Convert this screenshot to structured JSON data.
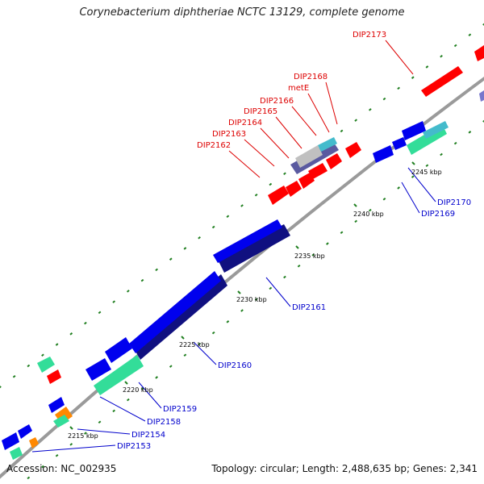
{
  "title": "Corynebacterium diphtheriae NCTC 13129, complete genome",
  "accession": "Accession: NC_002935",
  "summary": "Topology: circular; Length: 2,488,635 bp; Genes: 2,341",
  "colors": {
    "backbone": "#9a9a9a",
    "gene_forward": "#0000ee",
    "gene_reverse": "#ff0000",
    "gene_cds_dark": "#101080",
    "gene_misc": "#33dd99",
    "gene_orange": "#ff8800",
    "gene_gray": "#c0c0c0",
    "gene_slate": "#5a5aa0",
    "gene_cyan": "#44bbcc",
    "label_forward": "#0000cc",
    "label_reverse": "#dd0000",
    "tick_dot": "#207f20"
  },
  "scale_labels": [
    "2215 kbp",
    "2220 kbp",
    "2225 kbp",
    "2230 kbp",
    "2235 kbp",
    "2240 kbp",
    "2245 kbp"
  ],
  "gene_labels_reverse": [
    "DIP2173",
    "DIP2168",
    "metE",
    "DIP2166",
    "DIP2165",
    "DIP2164",
    "DIP2163",
    "DIP2162"
  ],
  "gene_labels_forward": [
    "DIP2170",
    "DIP2169",
    "DIP2161",
    "DIP2160",
    "DIP2159",
    "DIP2158",
    "DIP2154",
    "DIP2153"
  ]
}
